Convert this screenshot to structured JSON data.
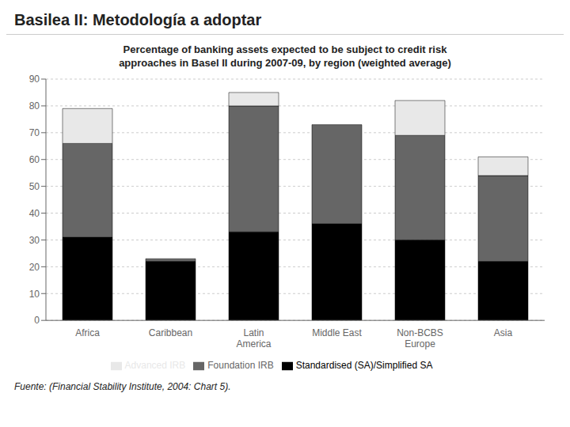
{
  "chart_data": {
    "type": "bar",
    "title": "Basilea II: Metodología a adoptar",
    "subtitle": "Percentage of banking assets expected to be subject to credit risk\napproaches in Basel II during 2007-09, by region (weighted average)",
    "annotations": [
      "Fuente: (Financial Stability Institute, 2004: Chart 5)."
    ],
    "categories": [
      "Africa",
      "Caribbean",
      "Latin\nAmerica",
      "Middle East",
      "Non-BCBS\nEurope",
      "Asia"
    ],
    "series": [
      {
        "name": "Standardised (SA)/Simplified SA",
        "color": "#000000",
        "values": [
          31,
          22,
          33,
          36,
          30,
          22
        ]
      },
      {
        "name": "Foundation IRB",
        "color": "#666666",
        "values": [
          35,
          1,
          47,
          37,
          39,
          32
        ]
      },
      {
        "name": "Advanced IRB",
        "color": "#e8e8e8",
        "values": [
          13,
          0,
          5,
          0,
          13,
          7
        ]
      }
    ],
    "ylim": [
      0,
      90
    ],
    "yticks": [
      0,
      10,
      20,
      30,
      40,
      50,
      60,
      70,
      80,
      90
    ],
    "stacked": true,
    "grid": true,
    "legend": "bottom"
  }
}
